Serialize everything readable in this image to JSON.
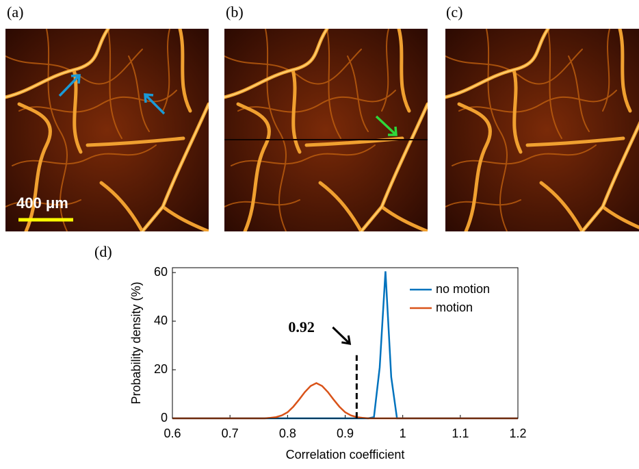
{
  "panels": [
    {
      "label": "(a)"
    },
    {
      "label": "(b)"
    },
    {
      "label": "(c)"
    }
  ],
  "scale_bar": "400 μm",
  "chart_data": {
    "type": "line",
    "panel_label": "(d)",
    "xlabel": "Correlation coefficient",
    "ylabel": "Probability density (%)",
    "x": [
      0.6,
      0.61,
      0.62,
      0.63,
      0.64,
      0.65,
      0.66,
      0.67,
      0.68,
      0.69,
      0.7,
      0.71,
      0.72,
      0.73,
      0.74,
      0.75,
      0.76,
      0.77,
      0.78,
      0.79,
      0.8,
      0.81,
      0.82,
      0.83,
      0.84,
      0.85,
      0.86,
      0.87,
      0.88,
      0.89,
      0.9,
      0.91,
      0.92,
      0.93,
      0.94,
      0.95,
      0.96,
      0.97,
      0.98,
      0.99,
      1,
      1.01,
      1.02,
      1.03,
      1.04,
      1.05,
      1.06,
      1.07,
      1.08,
      1.09,
      1.1,
      1.11,
      1.12,
      1.13,
      1.14,
      1.15,
      1.16,
      1.17,
      1.18,
      1.19,
      1.2
    ],
    "series": [
      {
        "name": "no motion",
        "color": "#0072bd",
        "values": [
          0,
          0,
          0,
          0,
          0,
          0,
          0,
          0,
          0,
          0,
          0,
          0,
          0,
          0,
          0,
          0,
          0,
          0,
          0,
          0,
          0,
          0,
          0,
          0,
          0,
          0,
          0,
          0,
          0,
          0,
          0,
          0,
          0,
          0,
          0,
          0.5,
          21,
          60.5,
          17,
          0,
          0,
          0,
          0,
          0,
          0,
          0,
          0,
          0,
          0,
          0,
          0,
          0,
          0,
          0,
          0,
          0,
          0,
          0,
          0,
          0,
          0
        ]
      },
      {
        "name": "motion",
        "color": "#d95319",
        "values": [
          0,
          0,
          0,
          0,
          0,
          0,
          0,
          0,
          0,
          0,
          0,
          0,
          0,
          0,
          0,
          0,
          0,
          0.2,
          0.5,
          1.2,
          2.5,
          4.8,
          7.7,
          10.8,
          13.3,
          14.5,
          13.3,
          10.8,
          7.7,
          4.8,
          2.5,
          1.2,
          0.5,
          0.2,
          0,
          0,
          0,
          0,
          0,
          0,
          0,
          0,
          0,
          0,
          0,
          0,
          0,
          0,
          0,
          0,
          0,
          0,
          0,
          0,
          0,
          0,
          0,
          0,
          0,
          0,
          0
        ]
      }
    ],
    "threshold": {
      "x": 0.92,
      "top": 26
    },
    "xlim": [
      0.6,
      1.2
    ],
    "xticks": [
      0.6,
      0.7,
      0.8,
      0.9,
      1,
      1.1,
      1.2
    ],
    "ylim": [
      0,
      62
    ],
    "yticks": [
      0,
      20,
      40,
      60
    ],
    "legend": "upper right"
  }
}
